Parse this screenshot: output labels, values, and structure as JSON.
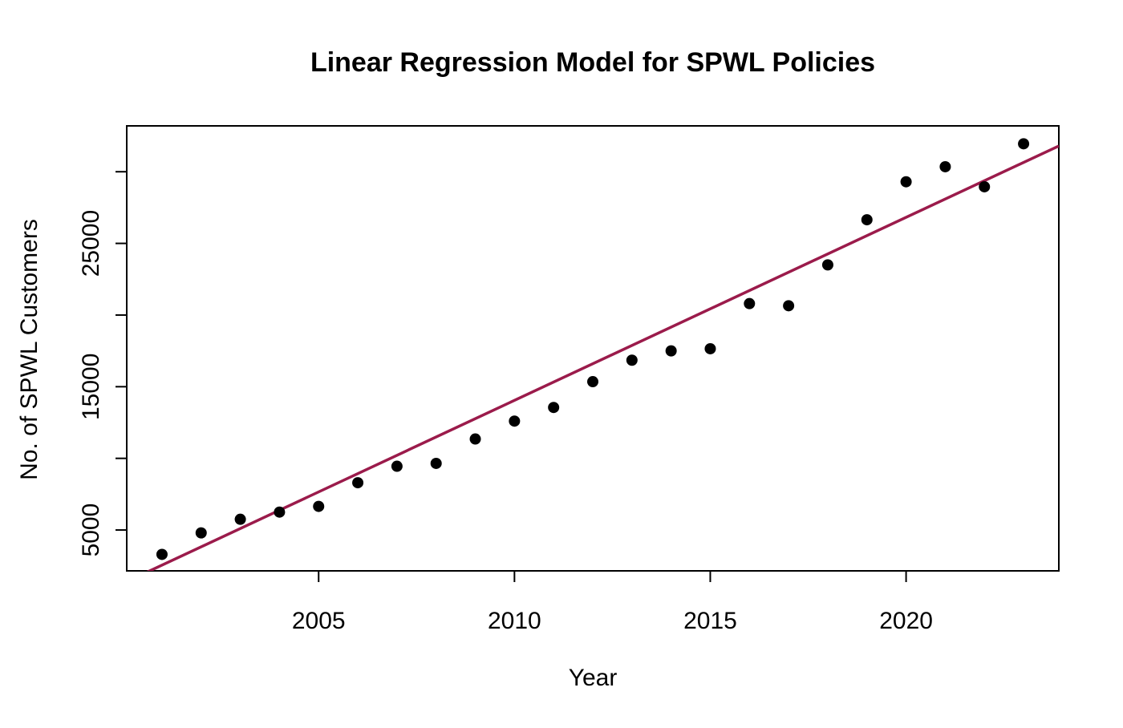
{
  "chart_data": {
    "type": "scatter",
    "title": "Linear Regression Model for SPWL Policies",
    "xlabel": "Year",
    "ylabel": "No. of SPWL Customers",
    "xlim": [
      2000.1,
      2023.9
    ],
    "ylim": [
      2150,
      33200
    ],
    "x_ticks": [
      2005,
      2010,
      2015,
      2020
    ],
    "y_ticks": [
      5000,
      10000,
      15000,
      20000,
      25000,
      30000
    ],
    "y_tick_labels_shown": [
      5000,
      15000,
      25000
    ],
    "grid": false,
    "legend": "none",
    "points": {
      "color": "#000000",
      "x": [
        2001,
        2002,
        2003,
        2004,
        2005,
        2006,
        2007,
        2008,
        2009,
        2010,
        2011,
        2012,
        2013,
        2014,
        2015,
        2016,
        2017,
        2018,
        2019,
        2020,
        2021,
        2022,
        2023
      ],
      "y": [
        3300,
        4800,
        5750,
        6250,
        6650,
        8300,
        9450,
        9650,
        11350,
        12600,
        13550,
        15350,
        16850,
        17500,
        17650,
        20800,
        20650,
        23500,
        26650,
        29300,
        30350,
        28950,
        31950
      ]
    },
    "regression_line": {
      "color": "#9b1b4b",
      "x": [
        2000.1,
        2023.9
      ],
      "y": [
        1400,
        31800
      ]
    }
  }
}
